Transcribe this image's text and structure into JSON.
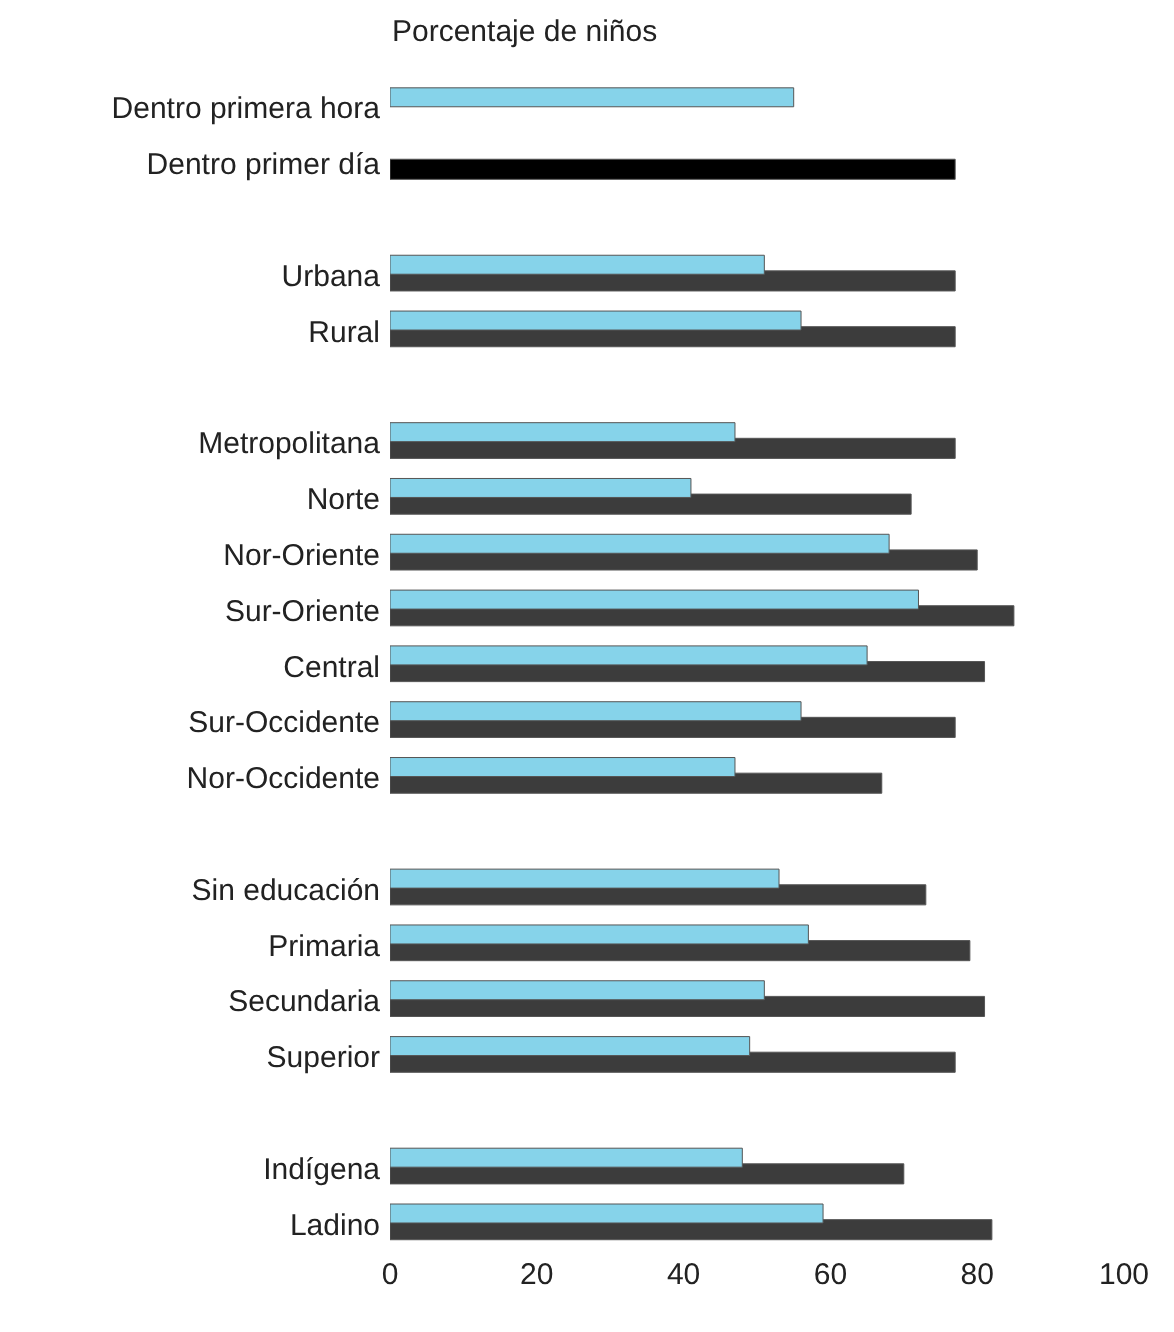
{
  "chart_data": {
    "type": "bar",
    "orientation": "horizontal",
    "title": "Porcentaje de niños",
    "categories": [
      "Dentro primera hora",
      "Dentro primer día",
      null,
      "Urbana",
      "Rural",
      null,
      "Metropolitana",
      "Norte",
      "Nor-Oriente",
      "Sur-Oriente",
      "Central",
      "Sur-Occidente",
      "Nor-Occidente",
      null,
      "Sin educación",
      "Primaria",
      "Secundaria",
      "Superior",
      null,
      "Indígena",
      "Ladino"
    ],
    "series": [
      {
        "colors": [
          "#3c3c3c",
          "#000000",
          "#3c3c3c",
          "#3c3c3c",
          "#3c3c3c",
          "#3c3c3c",
          "#3c3c3c",
          "#3c3c3c",
          "#3c3c3c",
          "#3c3c3c",
          "#3c3c3c",
          "#3c3c3c",
          "#3c3c3c",
          "#3c3c3c",
          "#3c3c3c",
          "#3c3c3c",
          "#3c3c3c",
          "#3c3c3c",
          "#3c3c3c",
          "#3c3c3c",
          "#3c3c3c"
        ],
        "values": [
          null,
          77,
          null,
          77,
          77,
          null,
          77,
          71,
          80,
          85,
          81,
          77,
          67,
          null,
          73,
          79,
          81,
          77,
          null,
          70,
          82
        ]
      },
      {
        "color": "#86d3ea",
        "values": [
          55,
          null,
          null,
          51,
          56,
          null,
          47,
          41,
          68,
          72,
          65,
          56,
          47,
          null,
          53,
          57,
          51,
          49,
          null,
          48,
          59
        ]
      }
    ],
    "xlim": [
      0,
      100
    ],
    "xticks": [
      0,
      20,
      40,
      60,
      80,
      100
    ]
  }
}
